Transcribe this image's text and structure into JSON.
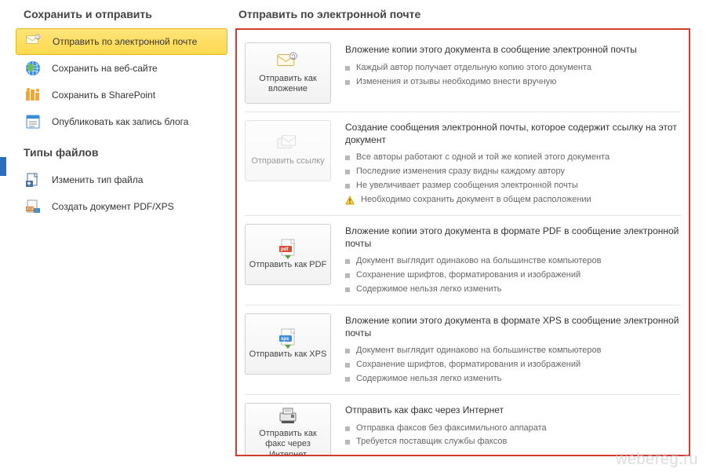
{
  "colors": {
    "highlight_border": "#d23b2f",
    "active_bg_top": "#ffe47a",
    "active_bg_bottom": "#ffd94f",
    "active_border": "#e6b91a",
    "text": "#444444",
    "muted_text": "#666666",
    "divider": "#e6e6e6",
    "button_border": "#cfcfcf",
    "bullet": "#b8b8b8",
    "accent_blue": "#2a6fbf"
  },
  "watermark": "webereg.ru",
  "sidebar": {
    "section1_title": "Сохранить и отправить",
    "section2_title": "Типы файлов",
    "items1": [
      {
        "label": "Отправить по электронной почте",
        "icon": "mail-attach",
        "active": true
      },
      {
        "label": "Сохранить на веб-сайте",
        "icon": "globe",
        "active": false
      },
      {
        "label": "Сохранить в SharePoint",
        "icon": "sharepoint",
        "active": false
      },
      {
        "label": "Опубликовать как запись блога",
        "icon": "blog",
        "active": false
      }
    ],
    "items2": [
      {
        "label": "Изменить тип файла",
        "icon": "change-type"
      },
      {
        "label": "Создать документ PDF/XPS",
        "icon": "pdfxps"
      }
    ]
  },
  "main": {
    "title": "Отправить по электронной почте",
    "options": [
      {
        "button_label": "Отправить как вложение",
        "button_icon": "mail-attach",
        "disabled": false,
        "title": "Вложение копии этого документа в сообщение электронной почты",
        "bullets": [
          {
            "type": "sq",
            "text": "Каждый автор получает отдельную копию этого документа"
          },
          {
            "type": "sq",
            "text": "Изменения и отзывы необходимо внести вручную"
          }
        ]
      },
      {
        "button_label": "Отправить ссылку",
        "button_icon": "mail-link",
        "disabled": true,
        "title": "Создание сообщения электронной почты, которое содержит ссылку на этот документ",
        "bullets": [
          {
            "type": "sq",
            "text": "Все авторы работают с одной и той же копией этого документа"
          },
          {
            "type": "sq",
            "text": "Последние изменения сразу видны каждому автору"
          },
          {
            "type": "sq",
            "text": "Не увеличивает размер сообщения электронной почты"
          },
          {
            "type": "warn",
            "text": "Необходимо сохранить документ в общем расположении"
          }
        ]
      },
      {
        "button_label": "Отправить как PDF",
        "button_icon": "pdf",
        "disabled": false,
        "title": "Вложение копии этого документа в формате PDF в сообщение электронной почты",
        "bullets": [
          {
            "type": "sq",
            "text": "Документ выглядит одинаково на большинстве компьютеров"
          },
          {
            "type": "sq",
            "text": "Сохранение шрифтов, форматирования и изображений"
          },
          {
            "type": "sq",
            "text": "Содержимое нельзя легко изменить"
          }
        ]
      },
      {
        "button_label": "Отправить как XPS",
        "button_icon": "xps",
        "disabled": false,
        "title": "Вложение копии этого документа в формате XPS в сообщение электронной почты",
        "bullets": [
          {
            "type": "sq",
            "text": "Документ выглядит одинаково на большинстве компьютеров"
          },
          {
            "type": "sq",
            "text": "Сохранение шрифтов, форматирования и изображений"
          },
          {
            "type": "sq",
            "text": "Содержимое нельзя легко изменить"
          }
        ]
      },
      {
        "button_label": "Отправить как факс через Интернет",
        "button_icon": "fax",
        "disabled": false,
        "title": "Отправить как факс через Интернет",
        "bullets": [
          {
            "type": "sq",
            "text": "Отправка факсов без факсимильного аппарата"
          },
          {
            "type": "sq",
            "text": "Требуется поставщик службы факсов"
          }
        ]
      }
    ]
  }
}
